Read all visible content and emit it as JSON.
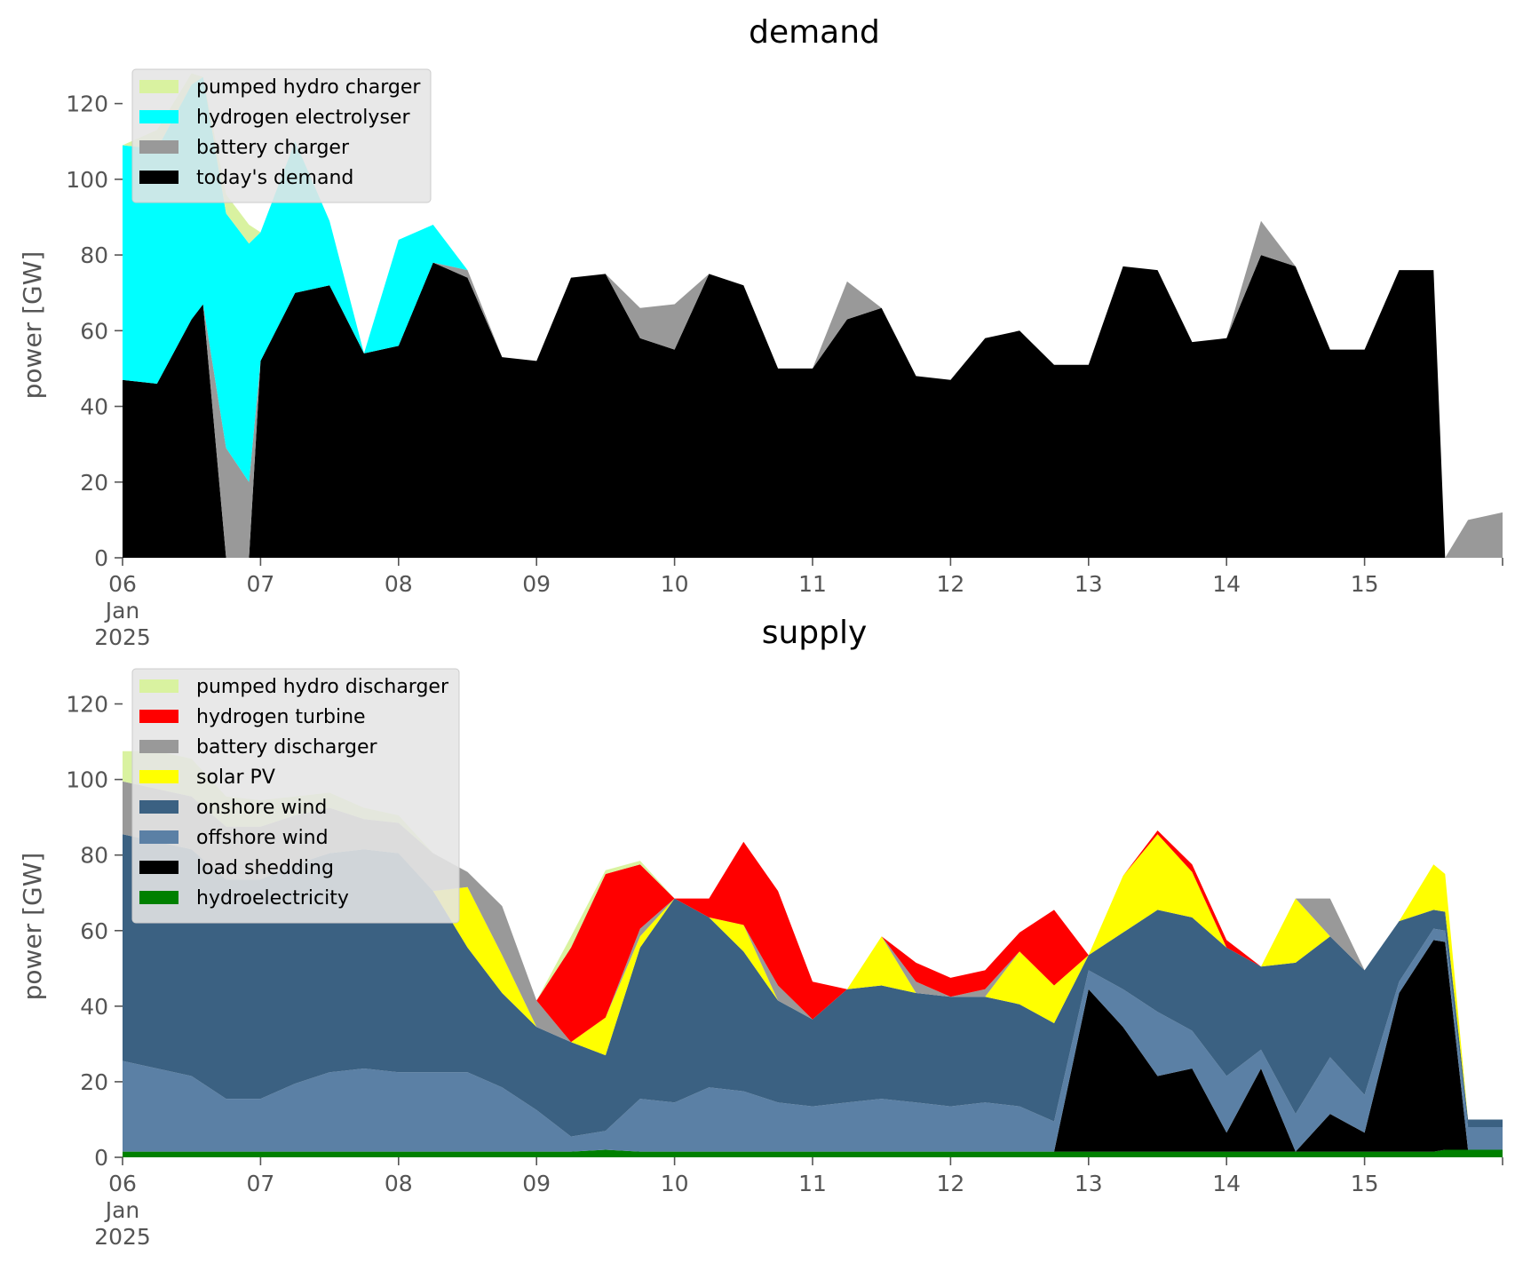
{
  "chart_data": [
    {
      "type": "area",
      "stacked": true,
      "title": "demand",
      "xlabel": "",
      "ylabel": "power [GW]",
      "ylim": [
        0,
        130
      ],
      "y_ticks": [
        0,
        20,
        40,
        60,
        80,
        100,
        120
      ],
      "x_ticks": [
        "06",
        "07",
        "08",
        "09",
        "10",
        "11",
        "12",
        "13",
        "14",
        "15"
      ],
      "x_tick_sublabel": [
        "Jan",
        "2025"
      ],
      "xlim": [
        "2025-01-06",
        "2025-01-16"
      ],
      "grid": false,
      "legend_position": "upper-left",
      "x": [
        "2025-01-06 00:00",
        "2025-01-06 06:00",
        "2025-01-06 12:00",
        "2025-01-06 14:00",
        "2025-01-06 18:00",
        "2025-01-06 22:00",
        "2025-01-07 00:00",
        "2025-01-07 06:00",
        "2025-01-07 12:00",
        "2025-01-07 18:00",
        "2025-01-08 00:00",
        "2025-01-08 06:00",
        "2025-01-08 12:00",
        "2025-01-08 18:00",
        "2025-01-09 00:00",
        "2025-01-09 06:00",
        "2025-01-09 12:00",
        "2025-01-09 18:00",
        "2025-01-10 00:00",
        "2025-01-10 06:00",
        "2025-01-10 12:00",
        "2025-01-10 18:00",
        "2025-01-11 00:00",
        "2025-01-11 06:00",
        "2025-01-11 12:00",
        "2025-01-11 18:00",
        "2025-01-12 00:00",
        "2025-01-12 06:00",
        "2025-01-12 12:00",
        "2025-01-12 18:00",
        "2025-01-13 00:00",
        "2025-01-13 06:00",
        "2025-01-13 12:00",
        "2025-01-13 18:00",
        "2025-01-14 00:00",
        "2025-01-14 06:00",
        "2025-01-14 12:00",
        "2025-01-14 18:00",
        "2025-01-15 00:00",
        "2025-01-15 06:00",
        "2025-01-15 12:00",
        "2025-01-15 14:00",
        "2025-01-15 18:00",
        "2025-01-16 00:00"
      ],
      "series": [
        {
          "name": "today's demand",
          "color": "#000000",
          "values": [
            47,
            46,
            63,
            67,
            0,
            0,
            52,
            70,
            72,
            54,
            56,
            78,
            74,
            53,
            52,
            74,
            75,
            58,
            55,
            75,
            72,
            50,
            50,
            63,
            66,
            48,
            47,
            58,
            60,
            51,
            51,
            77,
            76,
            57,
            58,
            80,
            77,
            55,
            55,
            76,
            76,
            0,
            0,
            0
          ]
        },
        {
          "name": "battery charger",
          "color": "#999999",
          "values": [
            0,
            0,
            0,
            0,
            29,
            20,
            0,
            0,
            0,
            0,
            0,
            0,
            2,
            0,
            0,
            0,
            0,
            8,
            12,
            0,
            0,
            0,
            0,
            10,
            0,
            0,
            0,
            0,
            0,
            0,
            0,
            0,
            0,
            0,
            0,
            9,
            0,
            0,
            0,
            0,
            0,
            0,
            10,
            12
          ]
        },
        {
          "name": "hydrogen electrolyser",
          "color": "#00ffff",
          "values": [
            62,
            62,
            62,
            60,
            62,
            63,
            34,
            40,
            17,
            0,
            28,
            10,
            0,
            0,
            0,
            0,
            0,
            0,
            0,
            0,
            0,
            0,
            0,
            0,
            0,
            0,
            0,
            0,
            0,
            0,
            0,
            0,
            0,
            0,
            0,
            0,
            0,
            0,
            0,
            0,
            0,
            0,
            0,
            0
          ]
        },
        {
          "name": "pumped hydro charger",
          "color": "#d9f2a0",
          "values": [
            0,
            5,
            3,
            0,
            5,
            5,
            0,
            0,
            0,
            0,
            0,
            0,
            0,
            0,
            0,
            0,
            0,
            0,
            0,
            0,
            0,
            0,
            0,
            0,
            0,
            0,
            0,
            0,
            0,
            0,
            0,
            0,
            0,
            0,
            0,
            0,
            0,
            0,
            0,
            0,
            0,
            0,
            0,
            0
          ]
        }
      ],
      "legend": [
        "pumped hydro charger",
        "hydrogen electrolyser",
        "battery charger",
        "today's demand"
      ]
    },
    {
      "type": "area",
      "stacked": true,
      "title": "supply",
      "xlabel": "",
      "ylabel": "power [GW]",
      "ylim": [
        0,
        130
      ],
      "y_ticks": [
        0,
        20,
        40,
        60,
        80,
        100,
        120
      ],
      "x_ticks": [
        "06",
        "07",
        "08",
        "09",
        "10",
        "11",
        "12",
        "13",
        "14",
        "15"
      ],
      "x_tick_sublabel": [
        "Jan",
        "2025"
      ],
      "xlim": [
        "2025-01-06",
        "2025-01-16"
      ],
      "grid": false,
      "legend_position": "upper-left",
      "x": [
        "2025-01-06 00:00",
        "2025-01-06 06:00",
        "2025-01-06 12:00",
        "2025-01-06 18:00",
        "2025-01-07 00:00",
        "2025-01-07 06:00",
        "2025-01-07 12:00",
        "2025-01-07 18:00",
        "2025-01-08 00:00",
        "2025-01-08 06:00",
        "2025-01-08 12:00",
        "2025-01-08 18:00",
        "2025-01-09 00:00",
        "2025-01-09 06:00",
        "2025-01-09 12:00",
        "2025-01-09 18:00",
        "2025-01-10 00:00",
        "2025-01-10 06:00",
        "2025-01-10 12:00",
        "2025-01-10 18:00",
        "2025-01-11 00:00",
        "2025-01-11 06:00",
        "2025-01-11 12:00",
        "2025-01-11 18:00",
        "2025-01-12 00:00",
        "2025-01-12 06:00",
        "2025-01-12 12:00",
        "2025-01-12 18:00",
        "2025-01-13 00:00",
        "2025-01-13 06:00",
        "2025-01-13 12:00",
        "2025-01-13 18:00",
        "2025-01-14 00:00",
        "2025-01-14 06:00",
        "2025-01-14 12:00",
        "2025-01-14 18:00",
        "2025-01-15 00:00",
        "2025-01-15 06:00",
        "2025-01-15 12:00",
        "2025-01-15 14:00",
        "2025-01-15 18:00",
        "2025-01-16 00:00"
      ],
      "series": [
        {
          "name": "hydroelectricity",
          "color": "#008000",
          "values": [
            1.5,
            1.5,
            1.5,
            1.5,
            1.5,
            1.5,
            1.5,
            1.5,
            1.5,
            1.5,
            1.5,
            1.5,
            1.5,
            1.5,
            2,
            1.5,
            1.5,
            1.5,
            1.5,
            1.5,
            1.5,
            1.5,
            1.5,
            1.5,
            1.5,
            1.5,
            1.5,
            1.5,
            1.5,
            1.5,
            1.5,
            1.5,
            1.5,
            1.5,
            1.5,
            1.5,
            1.5,
            1.5,
            1.5,
            2,
            2,
            2
          ]
        },
        {
          "name": "load shedding",
          "color": "#000000",
          "values": [
            0,
            0,
            0,
            0,
            0,
            0,
            0,
            0,
            0,
            0,
            0,
            0,
            0,
            0,
            0,
            0,
            0,
            0,
            0,
            0,
            0,
            0,
            0,
            0,
            0,
            0,
            0,
            0,
            43,
            33,
            20,
            22,
            5,
            22,
            0,
            10,
            5,
            42,
            56,
            55,
            0,
            0
          ]
        },
        {
          "name": "offshore wind",
          "color": "#5b80a5",
          "values": [
            24,
            22,
            20,
            14,
            14,
            18,
            21,
            22,
            21,
            21,
            21,
            17,
            11,
            4,
            5,
            14,
            13,
            17,
            16,
            13,
            12,
            13,
            14,
            13,
            12,
            13,
            12,
            8,
            5,
            10,
            17,
            10,
            15,
            5,
            10,
            15,
            10,
            3,
            3,
            3,
            6,
            6
          ]
        },
        {
          "name": "onshore wind",
          "color": "#3b6182",
          "values": [
            60,
            60,
            60,
            58,
            58,
            58,
            58,
            58,
            58,
            48,
            33,
            25,
            22,
            25,
            20,
            40,
            54,
            45,
            37,
            27,
            23,
            30,
            30,
            29,
            29,
            28,
            27,
            26,
            4,
            15,
            27,
            30,
            34,
            22,
            40,
            32,
            33,
            16,
            5,
            5,
            2,
            2
          ]
        },
        {
          "name": "solar PV",
          "color": "#ffff00",
          "values": [
            0,
            0,
            0,
            0,
            0,
            0,
            0,
            0,
            0,
            0,
            16,
            10,
            0,
            0,
            10,
            3,
            0,
            0,
            7,
            0,
            0,
            0,
            13,
            0,
            0,
            0,
            14,
            10,
            0,
            15,
            20,
            12,
            0,
            0,
            17,
            0,
            0,
            0,
            12,
            10,
            0,
            0
          ]
        },
        {
          "name": "battery discharger",
          "color": "#999999",
          "values": [
            14,
            14,
            14,
            14,
            14,
            13,
            12,
            8,
            8,
            10,
            4,
            13,
            7,
            0,
            0,
            2,
            0,
            0,
            0,
            4,
            0,
            0,
            0,
            3,
            0,
            2,
            0,
            0,
            0,
            0,
            0,
            0,
            0,
            0,
            0,
            10,
            0,
            0,
            0,
            0,
            0,
            0
          ]
        },
        {
          "name": "hydrogen turbine",
          "color": "#ff0000",
          "values": [
            0,
            0,
            0,
            0,
            0,
            0,
            0,
            0,
            0,
            0,
            0,
            0,
            0,
            25,
            38,
            17,
            0,
            5,
            22,
            25,
            10,
            0,
            0,
            5,
            5,
            5,
            5,
            20,
            0,
            0,
            1,
            2,
            2,
            0,
            0,
            0,
            0,
            0,
            0,
            0,
            0,
            0
          ]
        },
        {
          "name": "pumped hydro discharger",
          "color": "#d9f2a0",
          "values": [
            8,
            10,
            10,
            8,
            7,
            5,
            4,
            3,
            2,
            0,
            0,
            0,
            0,
            3,
            1,
            1,
            0,
            0,
            0,
            0,
            0,
            0,
            0,
            0,
            0,
            0,
            0,
            0,
            0,
            0,
            0,
            0,
            0,
            0,
            0,
            0,
            0,
            0,
            0,
            0,
            0,
            0
          ]
        }
      ],
      "legend": [
        "pumped hydro discharger",
        "hydrogen turbine",
        "battery discharger",
        "solar PV",
        "onshore wind",
        "offshore wind",
        "load shedding",
        "hydroelectricity"
      ]
    }
  ]
}
